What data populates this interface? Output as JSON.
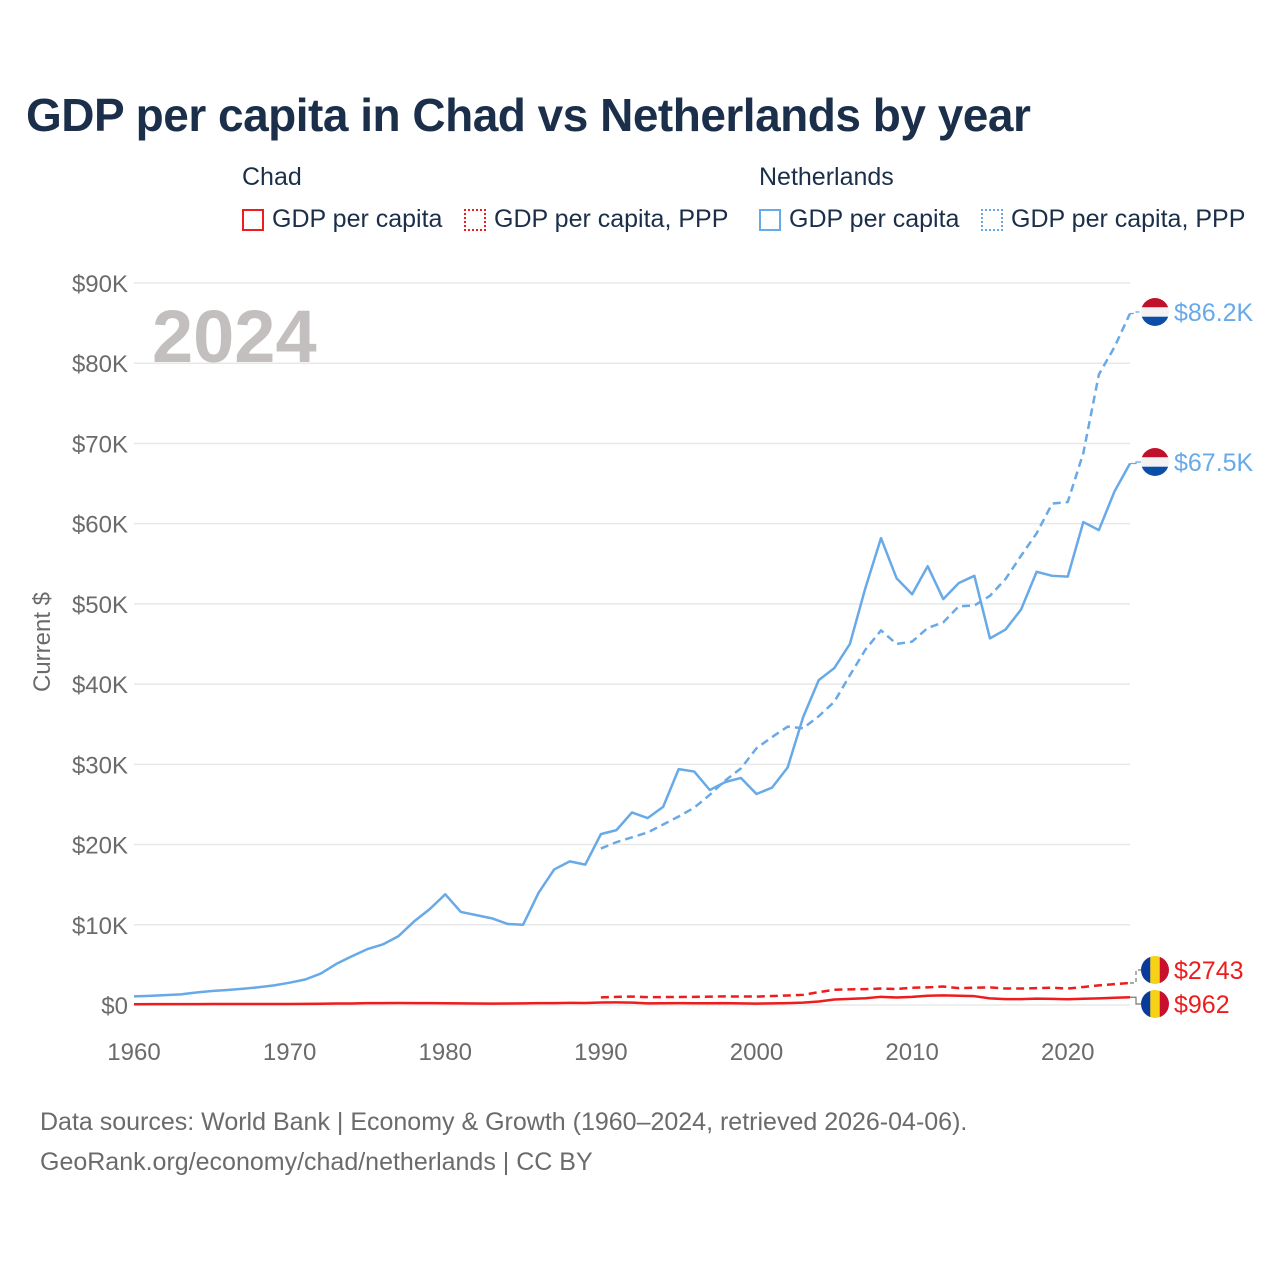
{
  "chart_data": {
    "type": "line",
    "title": "GDP per capita in Chad vs Netherlands by year",
    "ylabel": "Current $",
    "xlabel": "",
    "ylim": [
      0,
      90000
    ],
    "xlim": [
      1960,
      2024
    ],
    "y_ticks": [
      "$0",
      "$10K",
      "$20K",
      "$30K",
      "$40K",
      "$50K",
      "$60K",
      "$70K",
      "$80K",
      "$90K"
    ],
    "x_ticks": [
      "1960",
      "1970",
      "1980",
      "1990",
      "2000",
      "2010",
      "2020"
    ],
    "year_label": "2024",
    "grid": true,
    "legend": {
      "placement": "top",
      "groups": [
        {
          "name": "Chad",
          "items": [
            "GDP per capita",
            "GDP per capita, PPP"
          ]
        },
        {
          "name": "Netherlands",
          "items": [
            "GDP per capita",
            "GDP per capita, PPP"
          ]
        }
      ]
    },
    "colors": {
      "Chad": "#ee1c1c",
      "Netherlands": "#68a9e8"
    },
    "series": [
      {
        "name": "Netherlands GDP per capita",
        "country": "Netherlands",
        "dashed": false,
        "start": 1960,
        "end_label": "$67.5K",
        "values": [
          1070,
          1130,
          1230,
          1320,
          1560,
          1740,
          1870,
          2030,
          2210,
          2450,
          2780,
          3180,
          3920,
          5120,
          6070,
          6970,
          7560,
          8590,
          10420,
          11950,
          13800,
          11600,
          11200,
          10800,
          10100,
          10000,
          14000,
          16900,
          17900,
          17500,
          21300,
          21800,
          24000,
          23300,
          24700,
          29400,
          29100,
          26800,
          27800,
          28300,
          26300,
          27100,
          29600,
          35900,
          40500,
          42000,
          45000,
          52000,
          58200,
          53200,
          51200,
          54700,
          50600,
          52600,
          53500,
          45700,
          46800,
          49300,
          54000,
          53500,
          53400,
          60200,
          59200,
          64000,
          67500
        ]
      },
      {
        "name": "Netherlands GDP per capita, PPP",
        "country": "Netherlands",
        "dashed": true,
        "start": 1990,
        "end_label": "$86.2K",
        "values": [
          19500,
          20300,
          20900,
          21500,
          22500,
          23500,
          24600,
          26200,
          28000,
          29500,
          32000,
          33400,
          34700,
          34500,
          36000,
          37800,
          41100,
          44300,
          46700,
          45000,
          45300,
          47000,
          47700,
          49700,
          49800,
          51000,
          53100,
          56000,
          58800,
          62500,
          62700,
          68800,
          78600,
          82000,
          86200
        ]
      },
      {
        "name": "Chad GDP per capita",
        "country": "Chad",
        "dashed": false,
        "start": 1960,
        "end_label": "$962",
        "values": [
          100,
          105,
          110,
          112,
          115,
          118,
          120,
          122,
          125,
          128,
          130,
          140,
          160,
          180,
          190,
          230,
          240,
          250,
          240,
          230,
          220,
          200,
          180,
          170,
          190,
          200,
          230,
          240,
          260,
          250,
          310,
          320,
          300,
          210,
          220,
          230,
          220,
          220,
          240,
          210,
          170,
          200,
          230,
          290,
          430,
          690,
          760,
          840,
          1020,
          930,
          1010,
          1160,
          1200,
          1150,
          1100,
          830,
          730,
          740,
          800,
          760,
          720,
          780,
          820,
          900,
          962
        ]
      },
      {
        "name": "Chad GDP per capita, PPP",
        "country": "Chad",
        "dashed": true,
        "start": 1990,
        "end_label": "$2743",
        "values": [
          950,
          1010,
          1050,
          980,
          990,
          1000,
          1020,
          1040,
          1070,
          1060,
          1050,
          1120,
          1180,
          1270,
          1600,
          1900,
          1950,
          1980,
          2050,
          1990,
          2150,
          2200,
          2300,
          2100,
          2150,
          2200,
          2050,
          2050,
          2100,
          2150,
          2050,
          2250,
          2450,
          2600,
          2743
        ]
      }
    ]
  },
  "footer": {
    "line1": "Data sources: World Bank | Economy & Growth (1960–2024, retrieved 2026-04-06).",
    "line2": "GeoRank.org/economy/chad/netherlands | CC BY"
  }
}
